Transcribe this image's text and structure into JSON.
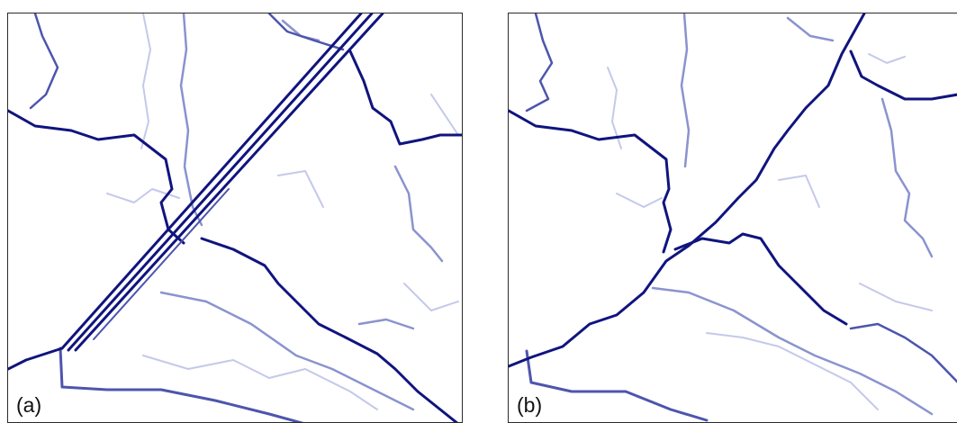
{
  "panels": [
    {
      "id": "a",
      "label": "(a)"
    },
    {
      "id": "b",
      "label": "(b)"
    }
  ],
  "colors": {
    "frame": "#2b2b2b",
    "river_dark": "#10147e",
    "river_mid": "#4d55ad",
    "river_light": "#8a93cf",
    "river_faint": "#c4c9ea"
  }
}
